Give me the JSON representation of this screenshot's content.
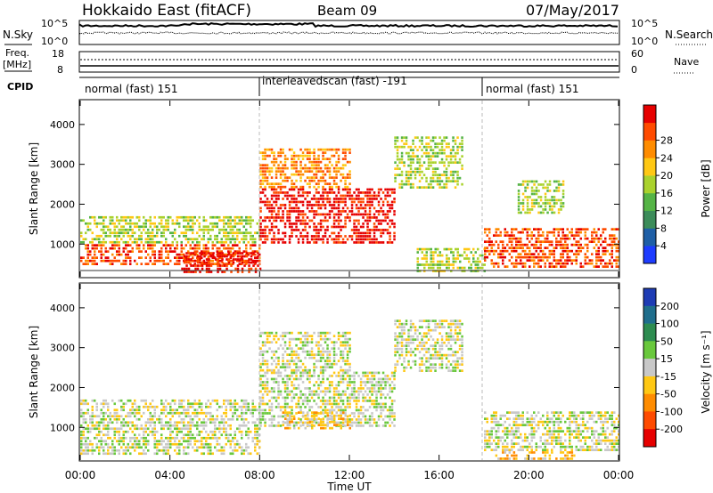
{
  "header": {
    "station": "Hokkaido East (fitACF)",
    "beam": "Beam 09",
    "date": "07/May/2017"
  },
  "top_panels": {
    "nsky_label": "N.Sky",
    "nsky_ticks": [
      "10^5",
      "10^0"
    ],
    "nsearch_label": "N.Search",
    "freq_label": "Freq.",
    "freq_units": "[MHz]",
    "freq_ticks": [
      "18",
      "8"
    ],
    "nave_label": "Nave",
    "nave_ticks": [
      "60",
      "0"
    ],
    "cpid_label": "CPID",
    "cpid_segments": [
      {
        "label": "normal (fast) 151",
        "start_h": 0,
        "end_h": 8
      },
      {
        "label": "interleavedscan (fast) -191",
        "start_h": 8,
        "end_h": 18
      },
      {
        "label": "normal (fast) 151",
        "start_h": 18,
        "end_h": 24
      }
    ]
  },
  "power_panel": {
    "ylabel": "Slant Range [km]",
    "colorbar_label": "Power [dB]",
    "colorbar_ticks": [
      "4",
      "8",
      "12",
      "16",
      "20",
      "24",
      "28"
    ],
    "colors": [
      "#1e3cff",
      "#1f5fa6",
      "#3c8c5a",
      "#55b446",
      "#aad22d",
      "#ffc814",
      "#ff8c00",
      "#ff4b00",
      "#e60000"
    ]
  },
  "velocity_panel": {
    "ylabel": "Slant Range [km]",
    "colorbar_label": "Velocity [m s⁻¹]",
    "colorbar_ticks": [
      "200",
      "100",
      "50",
      "15",
      "-15",
      "-50",
      "-100",
      "-200"
    ],
    "colors": [
      "#1e3cb4",
      "#1f6e8c",
      "#2d8c50",
      "#69c83c",
      "#c8c8c8",
      "#ffc814",
      "#ff8c00",
      "#ff4b00",
      "#e60000"
    ]
  },
  "chart_data": [
    {
      "type": "heatmap",
      "name": "power",
      "x_ticks": [
        "00:00",
        "04:00",
        "08:00",
        "12:00",
        "16:00",
        "20:00",
        "00:00"
      ],
      "y_ticks": [
        "1000",
        "2000",
        "3000",
        "4000"
      ],
      "xlim_h": [
        0,
        24
      ],
      "ylim_km": [
        180,
        4600
      ],
      "echo_regions": [
        {
          "t0": 0,
          "t1": 8,
          "r0": 500,
          "r1": 1000,
          "level": 7
        },
        {
          "t0": 0,
          "t1": 8,
          "r0": 1000,
          "r1": 1700,
          "level": 4
        },
        {
          "t0": 4.5,
          "t1": 8,
          "r0": 300,
          "r1": 800,
          "level": 8
        },
        {
          "t0": 8,
          "t1": 14,
          "r0": 1000,
          "r1": 2400,
          "level": 8
        },
        {
          "t0": 8,
          "t1": 12,
          "r0": 2400,
          "r1": 3400,
          "level": 6
        },
        {
          "t0": 14,
          "t1": 17,
          "r0": 2400,
          "r1": 3700,
          "level": 4
        },
        {
          "t0": 15,
          "t1": 18,
          "r0": 300,
          "r1": 900,
          "level": 4
        },
        {
          "t0": 18,
          "t1": 24,
          "r0": 400,
          "r1": 1400,
          "level": 7
        },
        {
          "t0": 19.5,
          "t1": 21.5,
          "r0": 1800,
          "r1": 2600,
          "level": 4
        }
      ]
    },
    {
      "type": "heatmap",
      "name": "velocity",
      "x_ticks": [
        "00:00",
        "04:00",
        "08:00",
        "12:00",
        "16:00",
        "20:00",
        "00:00"
      ],
      "xlabel": "Time UT",
      "y_ticks": [
        "1000",
        "2000",
        "3000",
        "4000"
      ],
      "xlim_h": [
        0,
        24
      ],
      "ylim_km": [
        180,
        4600
      ],
      "echo_regions": [
        {
          "t0": 0,
          "t1": 8,
          "r0": 300,
          "r1": 1700,
          "level": 4
        },
        {
          "t0": 8,
          "t1": 14,
          "r0": 1000,
          "r1": 2400,
          "level": 4
        },
        {
          "t0": 9,
          "t1": 12,
          "r0": 1000,
          "r1": 1400,
          "level": 5
        },
        {
          "t0": 8,
          "t1": 12,
          "r0": 2400,
          "r1": 3400,
          "level": 4
        },
        {
          "t0": 14,
          "t1": 17,
          "r0": 2400,
          "r1": 3700,
          "level": 4
        },
        {
          "t0": 18,
          "t1": 24,
          "r0": 400,
          "r1": 1400,
          "level": 4
        },
        {
          "t0": 18.5,
          "t1": 22,
          "r0": 180,
          "r1": 400,
          "level": 5
        }
      ]
    }
  ]
}
